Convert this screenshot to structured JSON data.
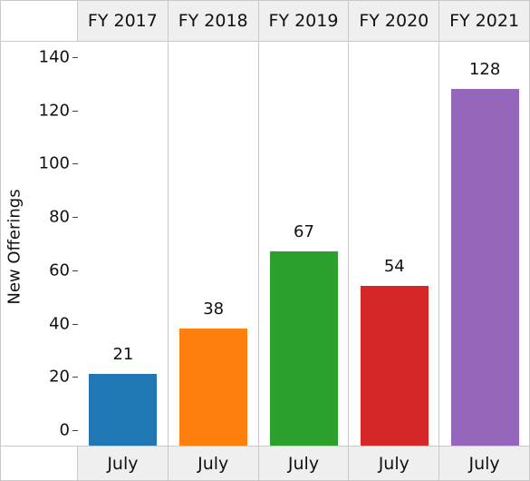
{
  "chart_data": {
    "type": "bar",
    "ylabel": "New Offerings",
    "ylim": [
      0,
      140
    ],
    "yticks": [
      0,
      20,
      40,
      60,
      80,
      100,
      120,
      140
    ],
    "panels": [
      {
        "header": "FY 2017",
        "category": "July",
        "value": 21,
        "color": "#1f77b4"
      },
      {
        "header": "FY 2018",
        "category": "July",
        "value": 38,
        "color": "#ff7f0e"
      },
      {
        "header": "FY 2019",
        "category": "July",
        "value": 67,
        "color": "#2ca02c"
      },
      {
        "header": "FY 2020",
        "category": "July",
        "value": 54,
        "color": "#d62728"
      },
      {
        "header": "FY 2021",
        "category": "July",
        "value": 128,
        "color": "#9467bd"
      }
    ],
    "grid": false
  }
}
